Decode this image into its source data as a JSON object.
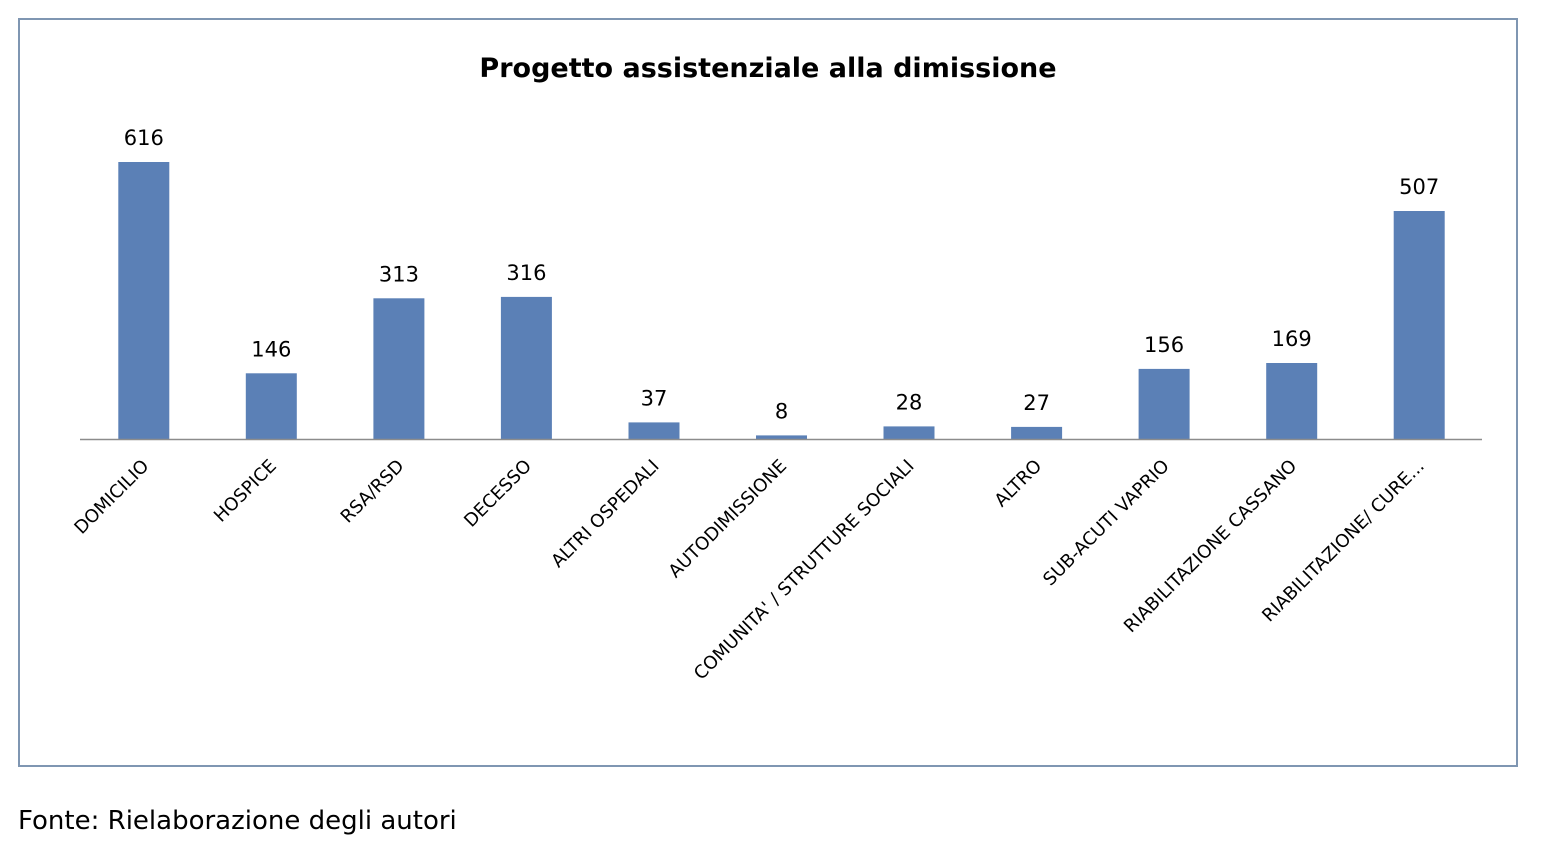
{
  "source_note": "Fonte: Rielaborazione degli autori",
  "chart_data": {
    "type": "bar",
    "title": "Progetto assistenziale alla dimissione",
    "xlabel": "",
    "ylabel": "",
    "categories": [
      "DOMICILIO",
      "HOSPICE",
      "RSA/RSD",
      "DECESSO",
      "ALTRI OSPEDALI",
      "AUTODIMISSIONE",
      "COMUNITA' / STRUTTURE SOCIALI",
      "ALTRO",
      "SUB-ACUTI VAPRIO",
      "RIABILITAZIONE CASSANO",
      "RIABILITAZIONE/  CURE..."
    ],
    "values": [
      616,
      146,
      313,
      316,
      37,
      8,
      28,
      27,
      156,
      169,
      507
    ],
    "ylim": [
      0,
      616
    ],
    "grid": false,
    "legend": "none",
    "bar_color": "#5b80b6",
    "axis_color": "#8c8c8c"
  }
}
